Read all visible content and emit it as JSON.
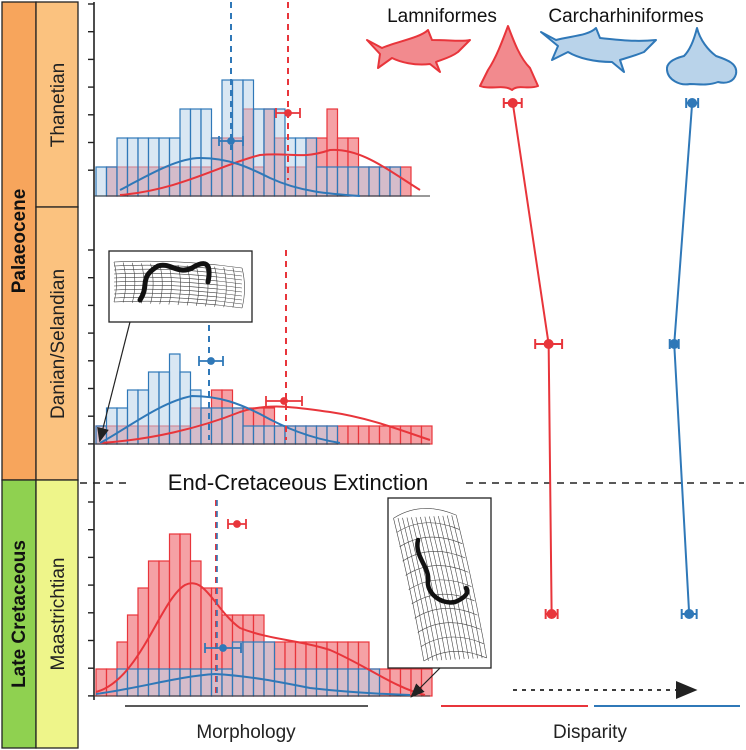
{
  "colors": {
    "lamniformes": "#e8353b",
    "lamniformes_fill": "#f28a8e",
    "carcharhiniformes": "#2f78b8",
    "carcharhiniformes_fill": "#b9d3ea",
    "epoch_palaeocene": "#f7a55c",
    "epoch_late_cretaceous": "#8fd150",
    "stage_palaeocene": "#fbc27f",
    "stage_cretaceous": "#eef58a"
  },
  "timescale": {
    "epochs": [
      {
        "name": "Palaeocene"
      },
      {
        "name": "Late Cretaceous"
      }
    ],
    "stages": [
      {
        "name": "Thanetian"
      },
      {
        "name": "Danian/Selandian"
      },
      {
        "name": "Maastrichtian"
      }
    ]
  },
  "event": {
    "label": "End-Cretaceous Extinction"
  },
  "legend": {
    "lamniformes": "Lamniformes",
    "carcharhiniformes": "Carcharhiniformes"
  },
  "axes": {
    "morphology_label": "Morphology",
    "disparity_label": "Disparity"
  },
  "histograms": {
    "thanetian": {
      "red": [
        0,
        1,
        1,
        1,
        1,
        1,
        1,
        1,
        1,
        1,
        1,
        2,
        2,
        2,
        3,
        1,
        3,
        2,
        1,
        1,
        2,
        2,
        3,
        2,
        2,
        1,
        1,
        1,
        1,
        1,
        0,
        0
      ],
      "blue": [
        1,
        1,
        2,
        2,
        2,
        2,
        2,
        2,
        3,
        3,
        3,
        2,
        4,
        4,
        4,
        3,
        3,
        3,
        2,
        2,
        2,
        1,
        1,
        1,
        1,
        1,
        1,
        1,
        1,
        0,
        0,
        0
      ]
    },
    "danian": {
      "red": [
        1,
        1,
        1,
        1,
        1,
        1,
        1,
        1,
        1,
        2,
        2,
        3,
        3,
        2,
        2,
        2,
        2,
        1,
        1,
        1,
        1,
        1,
        1,
        1,
        1,
        1,
        1,
        1,
        1,
        1,
        1,
        1
      ],
      "blue": [
        1,
        2,
        2,
        3,
        3,
        4,
        4,
        5,
        4,
        3,
        2,
        2,
        2,
        2,
        1,
        1,
        1,
        1,
        1,
        1,
        1,
        1,
        1,
        0,
        0,
        0,
        0,
        0,
        0,
        0,
        0,
        0
      ]
    },
    "maastrichtian": {
      "red": [
        1,
        1,
        2,
        3,
        4,
        5,
        5,
        6,
        6,
        5,
        4,
        4,
        3,
        3,
        3,
        3,
        2,
        2,
        2,
        2,
        2,
        2,
        2,
        2,
        2,
        2,
        1,
        1,
        1,
        1,
        1,
        1
      ],
      "blue": [
        0,
        0,
        1,
        1,
        1,
        1,
        1,
        1,
        1,
        1,
        1,
        1,
        1,
        2,
        2,
        2,
        2,
        1,
        1,
        1,
        1,
        1,
        1,
        1,
        1,
        1,
        1,
        0,
        0,
        0,
        0,
        0
      ]
    }
  },
  "disparity_points": {
    "lamniformes": [
      {
        "stage": "Thanetian",
        "value": 0.24,
        "err": 0.06
      },
      {
        "stage": "Danian/Selandian",
        "value": 0.36,
        "err": 0.09
      },
      {
        "stage": "Maastrichtian",
        "value": 0.37,
        "err": 0.04
      }
    ],
    "carcharhiniformes": [
      {
        "stage": "Thanetian",
        "value": 0.84,
        "err": 0.04
      },
      {
        "stage": "Danian/Selandian",
        "value": 0.78,
        "err": 0.03
      },
      {
        "stage": "Maastrichtian",
        "value": 0.83,
        "err": 0.05
      }
    ]
  }
}
